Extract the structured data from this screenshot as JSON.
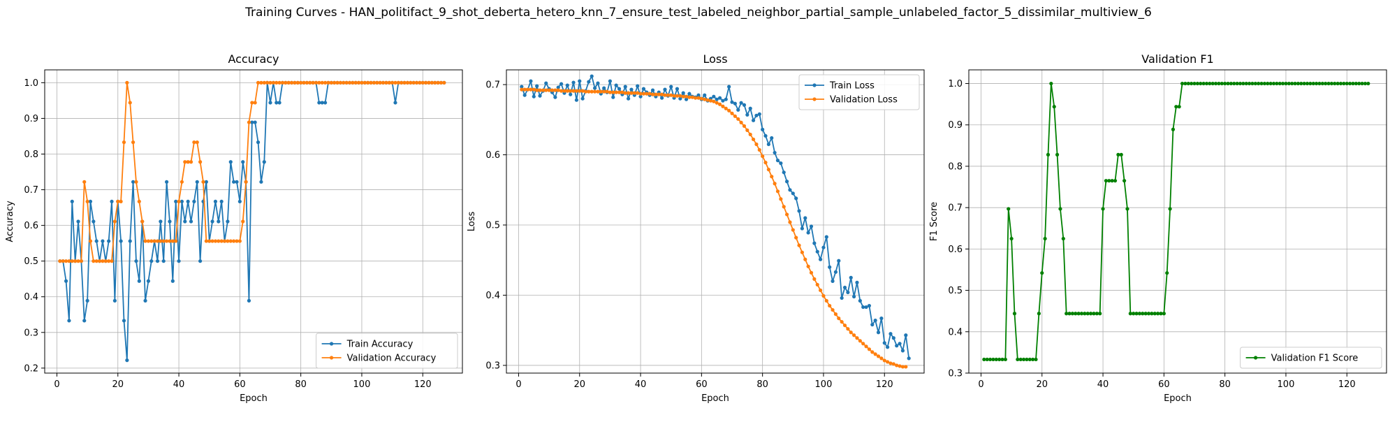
{
  "figure": {
    "suptitle": "Training Curves - HAN_politifact_9_shot_deberta_hetero_knn_7_ensure_test_labeled_neighbor_partial_sample_unlabeled_factor_5_dissimilar_multiview_6"
  },
  "colors": {
    "blue": "#1f77b4",
    "orange": "#ff7f0e",
    "green": "#008000",
    "grid": "#b0b0b0"
  },
  "chart_data": [
    {
      "type": "line",
      "title": "Accuracy",
      "xlabel": "Epoch",
      "ylabel": "Accuracy",
      "xlim": [
        -4,
        133
      ],
      "ylim": [
        0.186,
        1.036
      ],
      "xticks": [
        0,
        20,
        40,
        60,
        80,
        100,
        120
      ],
      "yticks": [
        0.2,
        0.3,
        0.4,
        0.5,
        0.6,
        0.7,
        0.8,
        0.9,
        1.0
      ],
      "grid": true,
      "legend": "lower-right",
      "series": [
        {
          "name": "Train Accuracy",
          "color": "#1f77b4",
          "values": [
            0.5,
            0.5,
            0.444,
            0.333,
            0.667,
            0.5,
            0.611,
            0.5,
            0.333,
            0.389,
            0.667,
            0.611,
            0.556,
            0.5,
            0.556,
            0.5,
            0.556,
            0.667,
            0.389,
            0.667,
            0.556,
            0.333,
            0.222,
            0.556,
            0.722,
            0.5,
            0.444,
            0.611,
            0.389,
            0.444,
            0.5,
            0.556,
            0.5,
            0.611,
            0.5,
            0.722,
            0.611,
            0.444,
            0.667,
            0.5,
            0.667,
            0.611,
            0.667,
            0.611,
            0.667,
            0.722,
            0.5,
            0.667,
            0.722,
            0.556,
            0.611,
            0.667,
            0.611,
            0.667,
            0.556,
            0.611,
            0.778,
            0.722,
            0.722,
            0.667,
            0.778,
            0.722,
            0.389,
            0.889,
            0.889,
            0.833,
            0.722,
            0.778,
            1.0,
            0.944,
            1.0,
            0.944,
            0.944,
            1.0,
            1.0,
            1.0,
            1.0,
            1.0,
            1.0,
            1.0,
            1.0,
            1.0,
            1.0,
            1.0,
            1.0,
            0.944,
            0.944,
            0.944,
            1.0,
            1.0,
            1.0,
            1.0,
            1.0,
            1.0,
            1.0,
            1.0,
            1.0,
            1.0,
            1.0,
            1.0,
            1.0,
            1.0,
            1.0,
            1.0,
            1.0,
            1.0,
            1.0,
            1.0,
            1.0,
            1.0,
            0.944,
            1.0,
            1.0,
            1.0,
            1.0,
            1.0,
            1.0,
            1.0,
            1.0,
            1.0,
            1.0,
            1.0,
            1.0,
            1.0,
            1.0,
            1.0,
            1.0
          ]
        },
        {
          "name": "Validation Accuracy",
          "color": "#ff7f0e",
          "values": [
            0.5,
            0.5,
            0.5,
            0.5,
            0.5,
            0.5,
            0.5,
            0.5,
            0.722,
            0.667,
            0.556,
            0.5,
            0.5,
            0.5,
            0.5,
            0.5,
            0.5,
            0.5,
            0.611,
            0.667,
            0.667,
            0.833,
            1.0,
            0.944,
            0.833,
            0.722,
            0.667,
            0.611,
            0.556,
            0.556,
            0.556,
            0.556,
            0.556,
            0.556,
            0.556,
            0.556,
            0.556,
            0.556,
            0.556,
            0.667,
            0.722,
            0.778,
            0.778,
            0.778,
            0.833,
            0.833,
            0.778,
            0.722,
            0.556,
            0.556,
            0.556,
            0.556,
            0.556,
            0.556,
            0.556,
            0.556,
            0.556,
            0.556,
            0.556,
            0.556,
            0.611,
            0.722,
            0.889,
            0.944,
            0.944,
            1.0,
            1.0,
            1.0,
            1.0,
            1.0,
            1.0,
            1.0,
            1.0,
            1.0,
            1.0,
            1.0,
            1.0,
            1.0,
            1.0,
            1.0,
            1.0,
            1.0,
            1.0,
            1.0,
            1.0,
            1.0,
            1.0,
            1.0,
            1.0,
            1.0,
            1.0,
            1.0,
            1.0,
            1.0,
            1.0,
            1.0,
            1.0,
            1.0,
            1.0,
            1.0,
            1.0,
            1.0,
            1.0,
            1.0,
            1.0,
            1.0,
            1.0,
            1.0,
            1.0,
            1.0,
            1.0,
            1.0,
            1.0,
            1.0,
            1.0,
            1.0,
            1.0,
            1.0,
            1.0,
            1.0,
            1.0,
            1.0,
            1.0,
            1.0,
            1.0,
            1.0,
            1.0
          ]
        }
      ]
    },
    {
      "type": "line",
      "title": "Loss",
      "xlabel": "Epoch",
      "ylabel": "Loss",
      "xlim": [
        -4,
        133
      ],
      "ylim": [
        0.289,
        0.721
      ],
      "xticks": [
        0,
        20,
        40,
        60,
        80,
        100,
        120
      ],
      "yticks": [
        0.3,
        0.4,
        0.5,
        0.6,
        0.7
      ],
      "grid": true,
      "legend": "upper-right",
      "series": [
        {
          "name": "Train Loss",
          "color": "#1f77b4",
          "values": [
            0.697,
            0.685,
            0.693,
            0.705,
            0.683,
            0.698,
            0.684,
            0.691,
            0.702,
            0.694,
            0.689,
            0.682,
            0.696,
            0.701,
            0.688,
            0.699,
            0.686,
            0.703,
            0.678,
            0.705,
            0.68,
            0.691,
            0.704,
            0.712,
            0.695,
            0.702,
            0.687,
            0.695,
            0.689,
            0.705,
            0.682,
            0.699,
            0.694,
            0.686,
            0.697,
            0.68,
            0.693,
            0.685,
            0.698,
            0.683,
            0.694,
            0.689,
            0.685,
            0.692,
            0.683,
            0.689,
            0.681,
            0.693,
            0.684,
            0.697,
            0.681,
            0.694,
            0.68,
            0.688,
            0.679,
            0.687,
            0.683,
            0.682,
            0.685,
            0.679,
            0.685,
            0.677,
            0.68,
            0.683,
            0.679,
            0.681,
            0.677,
            0.679,
            0.697,
            0.675,
            0.673,
            0.664,
            0.674,
            0.671,
            0.657,
            0.666,
            0.649,
            0.656,
            0.658,
            0.636,
            0.627,
            0.615,
            0.624,
            0.603,
            0.592,
            0.588,
            0.575,
            0.562,
            0.55,
            0.545,
            0.538,
            0.52,
            0.495,
            0.51,
            0.489,
            0.498,
            0.474,
            0.462,
            0.451,
            0.468,
            0.483,
            0.44,
            0.42,
            0.433,
            0.449,
            0.396,
            0.411,
            0.404,
            0.425,
            0.398,
            0.418,
            0.392,
            0.383,
            0.383,
            0.385,
            0.358,
            0.364,
            0.347,
            0.367,
            0.332,
            0.326,
            0.345,
            0.339,
            0.328,
            0.331,
            0.321,
            0.343,
            0.31
          ]
        },
        {
          "name": "Validation Loss",
          "color": "#ff7f0e",
          "values": [
            0.693,
            0.693,
            0.693,
            0.693,
            0.693,
            0.692,
            0.692,
            0.692,
            0.692,
            0.692,
            0.692,
            0.692,
            0.692,
            0.691,
            0.691,
            0.691,
            0.691,
            0.691,
            0.691,
            0.691,
            0.691,
            0.69,
            0.69,
            0.69,
            0.69,
            0.69,
            0.69,
            0.69,
            0.69,
            0.689,
            0.689,
            0.689,
            0.689,
            0.689,
            0.688,
            0.688,
            0.688,
            0.688,
            0.688,
            0.687,
            0.687,
            0.687,
            0.687,
            0.686,
            0.686,
            0.686,
            0.686,
            0.685,
            0.685,
            0.685,
            0.684,
            0.684,
            0.684,
            0.683,
            0.683,
            0.682,
            0.682,
            0.681,
            0.681,
            0.68,
            0.679,
            0.678,
            0.677,
            0.676,
            0.674,
            0.672,
            0.669,
            0.666,
            0.663,
            0.659,
            0.655,
            0.651,
            0.646,
            0.641,
            0.635,
            0.629,
            0.622,
            0.615,
            0.607,
            0.598,
            0.589,
            0.579,
            0.569,
            0.559,
            0.548,
            0.537,
            0.526,
            0.515,
            0.504,
            0.493,
            0.482,
            0.471,
            0.461,
            0.451,
            0.441,
            0.432,
            0.423,
            0.415,
            0.407,
            0.399,
            0.392,
            0.385,
            0.379,
            0.373,
            0.367,
            0.362,
            0.357,
            0.352,
            0.347,
            0.343,
            0.339,
            0.335,
            0.331,
            0.327,
            0.323,
            0.319,
            0.316,
            0.313,
            0.31,
            0.307,
            0.305,
            0.303,
            0.302,
            0.3,
            0.299,
            0.298,
            0.298
          ]
        }
      ]
    },
    {
      "type": "line",
      "title": "Validation F1",
      "xlabel": "Epoch",
      "ylabel": "F1 Score",
      "xlim": [
        -4,
        133
      ],
      "ylim": [
        0.3,
        1.033
      ],
      "xticks": [
        0,
        20,
        40,
        60,
        80,
        100,
        120
      ],
      "yticks": [
        0.3,
        0.4,
        0.5,
        0.6,
        0.7,
        0.8,
        0.9,
        1.0
      ],
      "grid": true,
      "legend": "lower-right",
      "series": [
        {
          "name": "Validation F1 Score",
          "color": "#008000",
          "values": [
            0.333,
            0.333,
            0.333,
            0.333,
            0.333,
            0.333,
            0.333,
            0.333,
            0.697,
            0.625,
            0.444,
            0.333,
            0.333,
            0.333,
            0.333,
            0.333,
            0.333,
            0.333,
            0.444,
            0.542,
            0.625,
            0.828,
            1.0,
            0.944,
            0.828,
            0.697,
            0.625,
            0.444,
            0.444,
            0.444,
            0.444,
            0.444,
            0.444,
            0.444,
            0.444,
            0.444,
            0.444,
            0.444,
            0.444,
            0.697,
            0.765,
            0.765,
            0.765,
            0.765,
            0.828,
            0.828,
            0.765,
            0.697,
            0.444,
            0.444,
            0.444,
            0.444,
            0.444,
            0.444,
            0.444,
            0.444,
            0.444,
            0.444,
            0.444,
            0.444,
            0.542,
            0.697,
            0.889,
            0.944,
            0.944,
            1.0,
            1.0,
            1.0,
            1.0,
            1.0,
            1.0,
            1.0,
            1.0,
            1.0,
            1.0,
            1.0,
            1.0,
            1.0,
            1.0,
            1.0,
            1.0,
            1.0,
            1.0,
            1.0,
            1.0,
            1.0,
            1.0,
            1.0,
            1.0,
            1.0,
            1.0,
            1.0,
            1.0,
            1.0,
            1.0,
            1.0,
            1.0,
            1.0,
            1.0,
            1.0,
            1.0,
            1.0,
            1.0,
            1.0,
            1.0,
            1.0,
            1.0,
            1.0,
            1.0,
            1.0,
            1.0,
            1.0,
            1.0,
            1.0,
            1.0,
            1.0,
            1.0,
            1.0,
            1.0,
            1.0,
            1.0,
            1.0,
            1.0,
            1.0,
            1.0,
            1.0,
            1.0
          ]
        }
      ]
    }
  ]
}
